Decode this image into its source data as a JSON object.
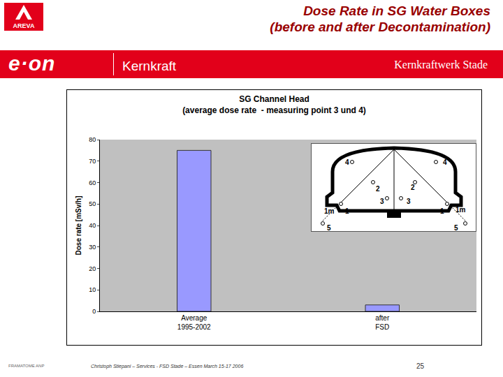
{
  "slide": {
    "title": [
      "Dose Rate in SG Water Boxes",
      "(before and after Decontamination)"
    ],
    "logo": "AREVA",
    "brand": "e·on",
    "brand_sub": "Kernkraft",
    "site": "Kernkraftwerk Stade",
    "footer_left": "FRAMATOME ANP",
    "footer": "Christoph Stiepani – Services - FSD Stade – Essen March 15-17 2006",
    "page": "25"
  },
  "chart_data": {
    "type": "bar",
    "title": "SG Channel Head",
    "subtitle": "(average dose rate  - measuring point 3 und 4)",
    "y_label": "Dose rate [mSv/h]",
    "categories": [
      "Average 1995-2002",
      "after FSD"
    ],
    "values": [
      75,
      3
    ],
    "color": "#9999ff",
    "ylim": [
      0,
      80
    ],
    "yticks": [
      0,
      10,
      20,
      30,
      40,
      50,
      60,
      70,
      80
    ],
    "grid": false
  },
  "inset": {
    "labels": [
      "4",
      "4",
      "2",
      "2",
      "3",
      "3",
      "1m",
      "1",
      "1",
      "1m",
      "5",
      "5"
    ]
  }
}
